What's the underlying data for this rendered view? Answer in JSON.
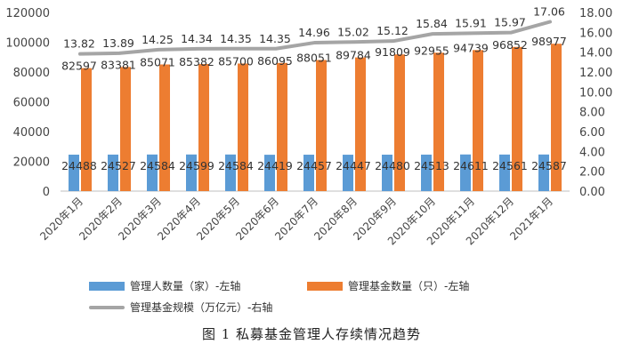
{
  "chart_data": {
    "type": "bar",
    "categories": [
      "2020年1月",
      "2020年2月",
      "2020年3月",
      "2020年4月",
      "2020年5月",
      "2020年6月",
      "2020年7月",
      "2020年8月",
      "2020年9月",
      "2020年10月",
      "2020年11月",
      "2020年12月",
      "2021年1月"
    ],
    "series": [
      {
        "name": "管理人数量（家）-左轴",
        "type": "bar",
        "axis": "left",
        "color": "#5b9bd5",
        "values": [
          24488,
          24527,
          24584,
          24599,
          24584,
          24419,
          24457,
          24447,
          24480,
          24513,
          24611,
          24561,
          24587
        ]
      },
      {
        "name": "管理基金数量（只）-左轴",
        "type": "bar",
        "axis": "left",
        "color": "#ed7d31",
        "values": [
          82597,
          83381,
          85071,
          85382,
          85700,
          86095,
          88051,
          89784,
          91809,
          92955,
          94739,
          96852,
          98977
        ]
      },
      {
        "name": "管理基金规模（万亿元）-右轴",
        "type": "line",
        "axis": "right",
        "color": "#a5a5a5",
        "values": [
          13.82,
          13.89,
          14.25,
          14.34,
          14.35,
          14.35,
          14.96,
          15.02,
          15.12,
          15.84,
          15.91,
          15.97,
          17.06
        ]
      }
    ],
    "left_axis": {
      "min": 0,
      "max": 120000,
      "ticks": [
        "0",
        "20000",
        "40000",
        "60000",
        "80000",
        "100000",
        "120000"
      ]
    },
    "right_axis": {
      "min": 0,
      "max": 18,
      "ticks": [
        "0.00",
        "2.00",
        "4.00",
        "6.00",
        "8.00",
        "10.00",
        "12.00",
        "14.00",
        "16.00",
        "18.00"
      ]
    },
    "legend_position": "bottom",
    "grid": false,
    "caption": "图 1  私募基金管理人存续情况趋势"
  }
}
